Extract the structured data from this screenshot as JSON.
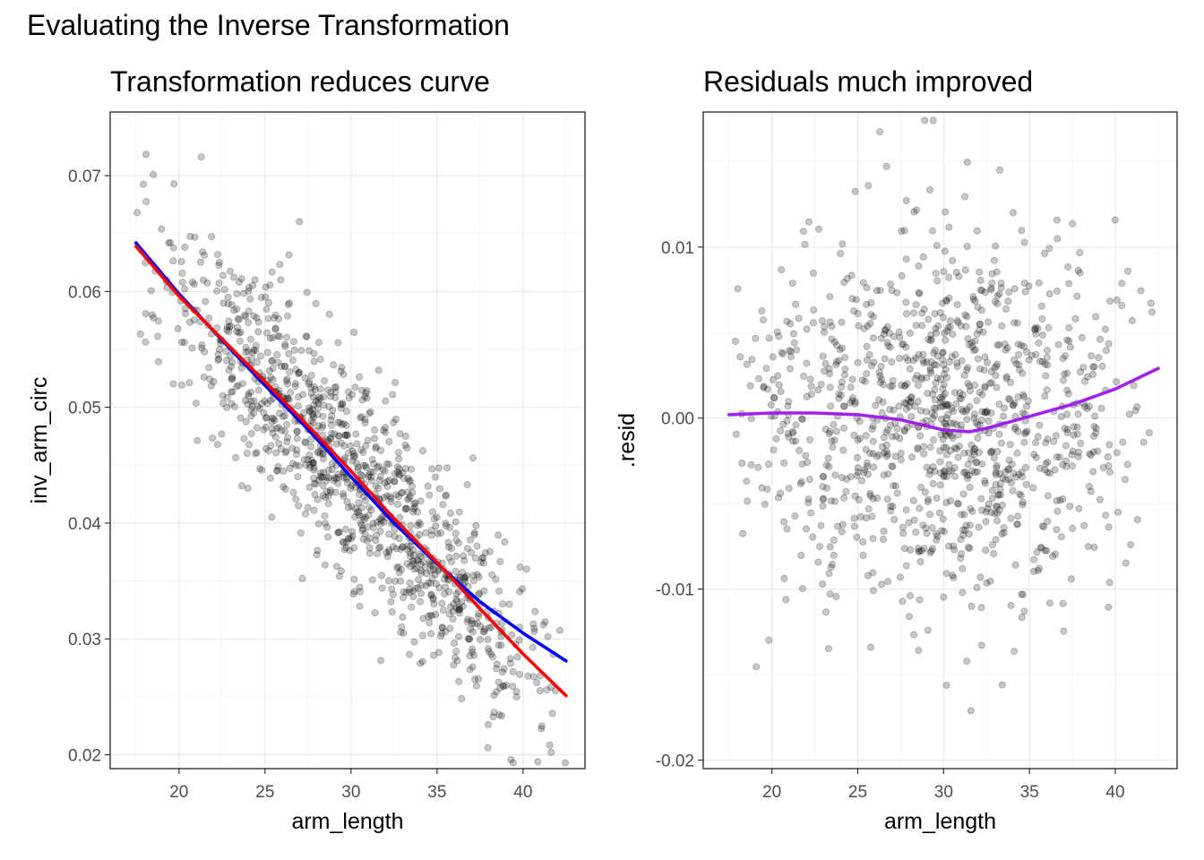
{
  "figure_title": "Evaluating the Inverse Transformation",
  "chart_data": [
    {
      "type": "scatter",
      "title": "Transformation reduces curve",
      "xlabel": "arm_length",
      "ylabel": "inv_arm_circ",
      "xlim": [
        16,
        43.6
      ],
      "ylim": [
        0.0188,
        0.0755
      ],
      "xticks": [
        20,
        25,
        30,
        35,
        40
      ],
      "xtick_labels": [
        "20",
        "25",
        "30",
        "35",
        "40"
      ],
      "yticks": [
        0.02,
        0.03,
        0.04,
        0.05,
        0.06,
        0.07
      ],
      "ytick_labels": [
        "0.02",
        "0.03",
        "0.04",
        "0.05",
        "0.06",
        "0.07"
      ],
      "grid": true,
      "point_color": "#000000",
      "point_alpha": 0.22,
      "point_cloud": {
        "n": 1100,
        "x_range": [
          17.2,
          42.6
        ],
        "y_trend": "linear decreasing from about 0.064 at x=17.5 to about 0.028 at x=42.5",
        "y_spread_sd": 0.0045
      },
      "series": [
        {
          "color": "#0000ff",
          "style": "line",
          "x": [
            17.5,
            20,
            22.5,
            25,
            27.5,
            30,
            32.5,
            35,
            37.5,
            40,
            42.5
          ],
          "y": [
            0.0642,
            0.0598,
            0.0558,
            0.0519,
            0.0481,
            0.044,
            0.04,
            0.0365,
            0.0332,
            0.0305,
            0.0281
          ]
        },
        {
          "color": "#ff0000",
          "style": "line",
          "x": [
            17.5,
            20,
            22.5,
            25,
            27.5,
            30,
            32.5,
            35,
            37.5,
            40,
            42.5
          ],
          "y": [
            0.0639,
            0.0596,
            0.0559,
            0.0522,
            0.0484,
            0.0445,
            0.0404,
            0.0366,
            0.0326,
            0.0287,
            0.0251
          ]
        }
      ]
    },
    {
      "type": "scatter",
      "title": "Residuals much improved",
      "xlabel": "arm_length",
      "ylabel": ".resid",
      "xlim": [
        16,
        43.6
      ],
      "ylim": [
        -0.0205,
        0.0179
      ],
      "xticks": [
        20,
        25,
        30,
        35,
        40
      ],
      "xtick_labels": [
        "20",
        "25",
        "30",
        "35",
        "40"
      ],
      "yticks": [
        -0.02,
        -0.01,
        0.0,
        0.01
      ],
      "ytick_labels": [
        "-0.02",
        "-0.01",
        "0.00",
        "0.01"
      ],
      "grid": true,
      "point_color": "#000000",
      "point_alpha": 0.22,
      "point_cloud": {
        "n": 1100,
        "x_range": [
          17.2,
          42.6
        ],
        "y_trend": "centered on zero",
        "y_spread_sd": 0.0052
      },
      "series": [
        {
          "color": "#a020f0",
          "style": "line",
          "x": [
            17.5,
            20,
            22.5,
            25,
            27.5,
            30,
            31.5,
            32.5,
            35,
            37.5,
            40,
            42.5
          ],
          "y": [
            0.0002,
            0.0003,
            0.0003,
            0.0002,
            -0.0001,
            -0.0007,
            -0.0008,
            -0.0006,
            0.0001,
            0.0008,
            0.0017,
            0.0029
          ]
        }
      ]
    }
  ]
}
